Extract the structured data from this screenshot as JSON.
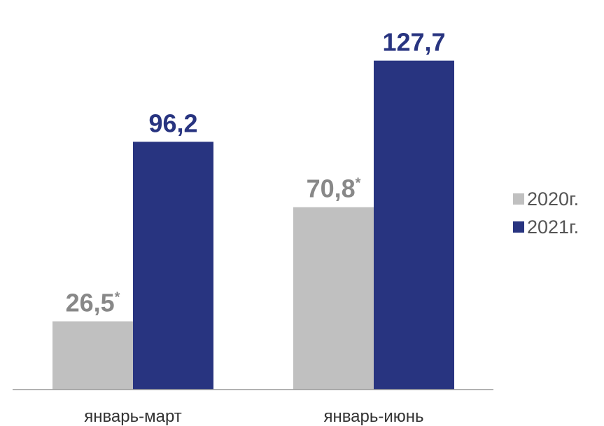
{
  "chart_data": {
    "type": "bar",
    "categories": [
      "январь-март",
      "январь-июнь"
    ],
    "series": [
      {
        "name": "2020г.",
        "values": [
          26.5,
          70.8
        ],
        "labels": [
          "26,5",
          "70,8"
        ],
        "label_marks": [
          "*",
          "*"
        ],
        "color": "#c0c0c0",
        "label_color": "#888888"
      },
      {
        "name": "2021г.",
        "values": [
          96.2,
          127.7
        ],
        "labels": [
          "96,2",
          "127,7"
        ],
        "label_marks": [
          "",
          ""
        ],
        "color": "#283480",
        "label_color": "#283480"
      }
    ],
    "ylim": [
      0,
      145
    ],
    "grid": false,
    "legend_position": "right"
  }
}
